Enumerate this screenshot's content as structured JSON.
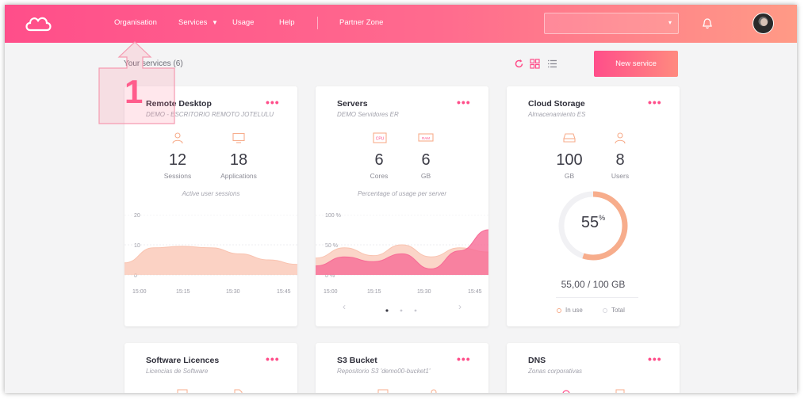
{
  "nav": {
    "items": [
      "Organisation",
      "Services",
      "Usage",
      "Help",
      "Partner Zone"
    ],
    "services_caret": "▼"
  },
  "org_select": {
    "value": "",
    "caret": "▾"
  },
  "icons": {
    "logo": "cloud-logo-icon",
    "bell": "bell-icon",
    "refresh": "refresh-icon",
    "grid_view": "grid-view-icon",
    "list_view": "list-view-icon",
    "options": "more-options-icon"
  },
  "colors": {
    "accent": "#ff4e8a",
    "accent_end": "#ff9a86",
    "chart_pink": "#f76b96",
    "chart_peach": "#f9c3b0",
    "gauge": "#f7ad8c"
  },
  "services": {
    "title": "Your services (6)",
    "new_button": "New service"
  },
  "callout": {
    "number": "1"
  },
  "cards": {
    "remote_desktop": {
      "title": "Remote Desktop",
      "subtitle": "DEMO - ESCRITORIO REMOTO JOTELULU",
      "dots": "•••",
      "metrics": [
        {
          "value": "12",
          "label": "Sessions"
        },
        {
          "value": "18",
          "label": "Applications"
        }
      ],
      "caption": "Active user sessions",
      "y_ticks": [
        "20",
        "10",
        "0"
      ],
      "x_ticks": [
        "15:00",
        "15:15",
        "15:30",
        "15:45"
      ]
    },
    "servers": {
      "title": "Servers",
      "subtitle": "DEMO Servidores ER",
      "dots": "•••",
      "metric_icon_labels": [
        "CPU",
        "RAM"
      ],
      "metrics": [
        {
          "value": "6",
          "label": "Cores"
        },
        {
          "value": "6",
          "label": "GB"
        }
      ],
      "caption": "Percentage of usage per server",
      "y_ticks": [
        "100 %",
        "50 %",
        "0 %"
      ],
      "x_ticks": [
        "15:00",
        "15:15",
        "15:30",
        "15:45"
      ],
      "pager": {
        "prev": "‹",
        "next": "›",
        "active_page": 1,
        "pages": 3
      }
    },
    "cloud_storage": {
      "title": "Cloud Storage",
      "subtitle": "Almacenamiento ES",
      "dots": "•••",
      "metrics": [
        {
          "value": "100",
          "label": "GB"
        },
        {
          "value": "8",
          "label": "Users"
        }
      ],
      "gauge": {
        "value": "55",
        "unit": "%",
        "fraction": 0.55
      },
      "total": "55,00 / 100 GB",
      "legend": [
        "In use",
        "Total"
      ]
    },
    "software_licences": {
      "title": "Software Licences",
      "subtitle": "Licencias de Software",
      "dots": "•••"
    },
    "s3_bucket": {
      "title": "S3 Bucket",
      "subtitle": "Repositorio S3 'demo00-bucket1'",
      "dots": "•••"
    },
    "dns": {
      "title": "DNS",
      "subtitle": "Zonas corporativas",
      "dots": "•••"
    }
  },
  "chart_data": [
    {
      "type": "area",
      "title": "",
      "x": [
        "15:00",
        "15:07",
        "15:15",
        "15:22",
        "15:30",
        "15:37",
        "15:45"
      ],
      "ylim": [
        0,
        20
      ],
      "grid": true,
      "series": [
        {
          "values": [
            4,
            9,
            9.5,
            9,
            7,
            5,
            3.5
          ]
        }
      ]
    },
    {
      "type": "area",
      "title": "",
      "x": [
        "15:00",
        "15:07",
        "15:15",
        "15:22",
        "15:30",
        "15:37",
        "15:45"
      ],
      "ylim": [
        0,
        100
      ],
      "grid": true,
      "series": [
        {
          "values": [
            28,
            45,
            32,
            50,
            30,
            45,
            38
          ]
        },
        {
          "values": [
            15,
            30,
            22,
            35,
            10,
            40,
            75
          ]
        }
      ]
    }
  ]
}
